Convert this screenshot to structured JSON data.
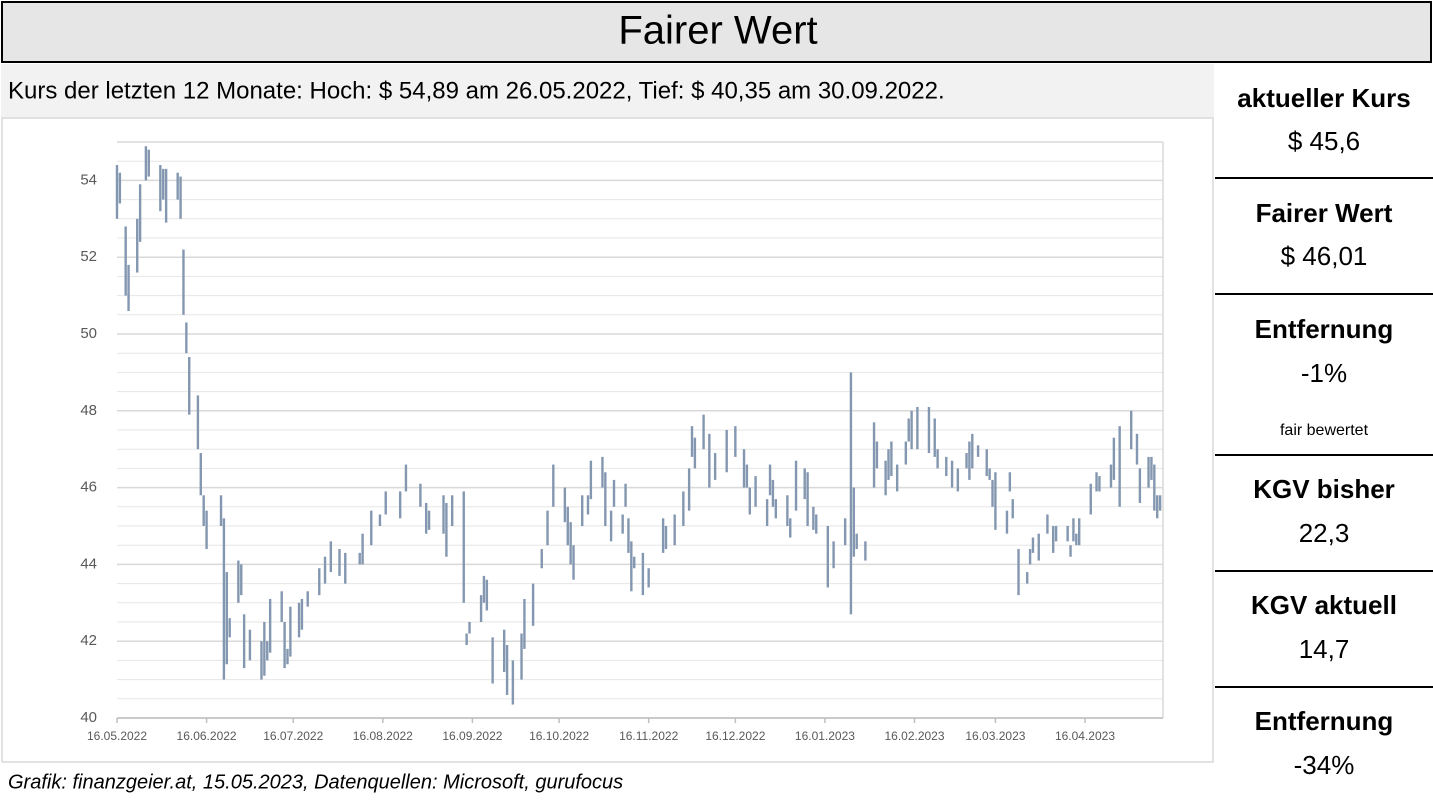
{
  "title": "Fairer Wert",
  "chart_data": {
    "type": "hilo",
    "subtitle": "Kurs der letzten 12 Monate: Hoch: $ 54,89 am 26.05.2022, Tief: $ 40,35 am 30.09.2022.",
    "color": "#8497b0",
    "grid": true,
    "x": [
      "2022-05-16",
      "2022-05-17",
      "2022-05-19",
      "2022-05-20",
      "2022-05-23",
      "2022-05-24",
      "2022-05-26",
      "2022-05-27",
      "2022-05-31",
      "2022-06-01",
      "2022-06-02",
      "2022-06-06",
      "2022-06-07",
      "2022-06-08",
      "2022-06-09",
      "2022-06-10",
      "2022-06-13",
      "2022-06-14",
      "2022-06-15",
      "2022-06-16",
      "2022-06-21",
      "2022-06-22",
      "2022-06-23",
      "2022-06-24",
      "2022-06-27",
      "2022-06-28",
      "2022-06-29",
      "2022-07-01",
      "2022-07-05",
      "2022-07-06",
      "2022-07-07",
      "2022-07-08",
      "2022-07-12",
      "2022-07-13",
      "2022-07-14",
      "2022-07-15",
      "2022-07-18",
      "2022-07-19",
      "2022-07-21",
      "2022-07-25",
      "2022-07-27",
      "2022-07-29",
      "2022-08-01",
      "2022-08-03",
      "2022-08-08",
      "2022-08-09",
      "2022-08-12",
      "2022-08-15",
      "2022-08-17",
      "2022-08-22",
      "2022-08-24",
      "2022-08-29",
      "2022-08-31",
      "2022-09-01",
      "2022-09-06",
      "2022-09-07",
      "2022-09-09",
      "2022-09-13",
      "2022-09-14",
      "2022-09-15",
      "2022-09-19",
      "2022-09-20",
      "2022-09-21",
      "2022-09-23",
      "2022-09-27",
      "2022-09-28",
      "2022-09-30",
      "2022-10-03",
      "2022-10-04",
      "2022-10-07",
      "2022-10-10",
      "2022-10-12",
      "2022-10-14",
      "2022-10-18",
      "2022-10-19",
      "2022-10-20",
      "2022-10-21",
      "2022-10-24",
      "2022-10-26",
      "2022-10-27",
      "2022-10-31",
      "2022-11-01",
      "2022-11-03",
      "2022-11-04",
      "2022-11-07",
      "2022-11-08",
      "2022-11-09",
      "2022-11-10",
      "2022-11-11",
      "2022-11-14",
      "2022-11-16",
      "2022-11-21",
      "2022-11-22",
      "2022-11-25",
      "2022-11-28",
      "2022-11-30",
      "2022-12-01",
      "2022-12-02",
      "2022-12-05",
      "2022-12-07",
      "2022-12-09",
      "2022-12-13",
      "2022-12-16",
      "2022-12-19",
      "2022-12-20",
      "2022-12-21",
      "2022-12-23",
      "2022-12-27",
      "2022-12-28",
      "2022-12-29",
      "2022-12-30",
      "2023-01-03",
      "2023-01-04",
      "2023-01-06",
      "2023-01-09",
      "2023-01-10",
      "2023-01-12",
      "2023-01-13",
      "2023-01-17",
      "2023-01-19",
      "2023-01-23",
      "2023-01-25",
      "2023-01-26",
      "2023-01-27",
      "2023-01-30",
      "2023-02-02",
      "2023-02-03",
      "2023-02-06",
      "2023-02-07",
      "2023-02-08",
      "2023-02-10",
      "2023-02-13",
      "2023-02-14",
      "2023-02-15",
      "2023-02-17",
      "2023-02-21",
      "2023-02-23",
      "2023-02-24",
      "2023-02-27",
      "2023-03-01",
      "2023-03-03",
      "2023-03-06",
      "2023-03-07",
      "2023-03-08",
      "2023-03-10",
      "2023-03-13",
      "2023-03-14",
      "2023-03-15",
      "2023-03-16",
      "2023-03-20",
      "2023-03-21",
      "2023-03-22",
      "2023-03-24",
      "2023-03-27",
      "2023-03-28",
      "2023-03-29",
      "2023-03-31",
      "2023-04-03",
      "2023-04-05",
      "2023-04-06",
      "2023-04-10",
      "2023-04-11",
      "2023-04-12",
      "2023-04-13",
      "2023-04-14",
      "2023-04-18",
      "2023-04-20",
      "2023-04-21",
      "2023-04-25",
      "2023-04-26",
      "2023-04-28",
      "2023-05-02",
      "2023-05-04",
      "2023-05-05",
      "2023-05-08",
      "2023-05-09",
      "2023-05-10",
      "2023-05-11",
      "2023-05-12"
    ],
    "low": [
      53.0,
      53.4,
      51.0,
      50.6,
      51.6,
      52.4,
      54.0,
      54.1,
      53.2,
      53.5,
      52.9,
      53.5,
      53.0,
      50.5,
      49.5,
      47.9,
      47.0,
      45.8,
      45.0,
      44.4,
      45.0,
      41.0,
      41.4,
      42.1,
      43.0,
      43.2,
      41.3,
      41.5,
      41.0,
      41.1,
      41.5,
      41.7,
      42.5,
      41.3,
      41.4,
      41.6,
      42.1,
      42.3,
      42.9,
      43.2,
      43.5,
      43.8,
      43.7,
      43.5,
      44.0,
      44.0,
      44.5,
      45.0,
      45.3,
      45.2,
      45.9,
      45.5,
      44.8,
      44.9,
      44.8,
      44.2,
      45.0,
      43.0,
      41.9,
      42.2,
      42.5,
      43.0,
      42.8,
      40.9,
      41.2,
      40.6,
      40.35,
      41.0,
      41.8,
      42.4,
      43.9,
      44.5,
      45.5,
      45.1,
      44.5,
      44.0,
      43.6,
      45.0,
      45.3,
      45.7,
      46.0,
      45.0,
      44.6,
      45.5,
      44.8,
      45.5,
      44.3,
      43.3,
      43.9,
      43.2,
      43.4,
      44.3,
      44.4,
      44.5,
      45.0,
      45.4,
      46.8,
      46.5,
      47.0,
      46.0,
      46.2,
      46.4,
      46.8,
      46.0,
      46.0,
      45.3,
      45.5,
      45.0,
      45.8,
      45.5,
      45.2,
      45.0,
      44.7,
      45.4,
      45.7,
      45.0,
      44.9,
      44.8,
      43.4,
      43.9,
      44.5,
      42.7,
      44.2,
      44.4,
      44.1,
      46.0,
      46.5,
      45.8,
      46.2,
      46.3,
      45.9,
      46.6,
      47.2,
      47.0,
      47.0,
      46.9,
      46.8,
      46.5,
      46.3,
      46.0,
      45.9,
      46.5,
      46.2,
      46.5,
      46.8,
      46.3,
      46.2,
      45.5,
      44.9,
      44.8,
      45.9,
      45.2,
      43.2,
      43.5,
      44.0,
      44.3,
      44.1,
      44.8,
      44.3,
      44.6,
      44.6,
      44.2,
      44.6,
      44.5,
      44.5,
      45.3,
      45.9,
      45.9,
      46.0,
      46.2,
      45.5,
      47.0,
      46.6,
      45.6,
      46.0,
      46.2,
      45.4,
      45.2,
      45.4
    ],
    "high": [
      54.4,
      54.2,
      52.8,
      51.8,
      53.0,
      53.9,
      54.89,
      54.8,
      54.4,
      54.3,
      54.3,
      54.2,
      54.1,
      52.2,
      50.3,
      49.4,
      48.4,
      46.9,
      45.8,
      45.4,
      45.8,
      45.2,
      43.8,
      42.6,
      44.1,
      44.0,
      42.7,
      42.3,
      42.0,
      42.5,
      42.0,
      43.1,
      43.3,
      42.5,
      41.8,
      42.9,
      43.0,
      43.1,
      43.3,
      43.9,
      44.2,
      44.6,
      44.4,
      44.3,
      44.3,
      44.8,
      45.4,
      45.3,
      45.9,
      45.9,
      46.6,
      46.1,
      45.6,
      45.4,
      45.8,
      45.6,
      45.8,
      45.9,
      42.2,
      42.5,
      43.2,
      43.7,
      43.6,
      42.1,
      42.3,
      41.9,
      41.5,
      42.2,
      43.1,
      43.5,
      44.4,
      45.4,
      46.6,
      46.0,
      45.5,
      45.1,
      44.5,
      45.8,
      45.8,
      46.7,
      46.8,
      46.4,
      45.4,
      46.2,
      45.3,
      46.1,
      45.2,
      44.6,
      44.2,
      44.3,
      43.9,
      45.2,
      45.0,
      45.3,
      45.9,
      46.5,
      47.6,
      47.3,
      47.9,
      47.4,
      46.9,
      47.5,
      47.6,
      47.0,
      46.6,
      46.0,
      46.3,
      45.7,
      46.6,
      46.2,
      45.7,
      45.8,
      45.2,
      46.7,
      46.5,
      46.4,
      45.5,
      45.3,
      45.0,
      44.6,
      45.2,
      49.0,
      46.0,
      44.8,
      44.6,
      47.7,
      47.2,
      46.7,
      47.0,
      47.2,
      46.6,
      47.2,
      47.8,
      48.0,
      48.1,
      48.1,
      47.8,
      47.0,
      46.8,
      46.7,
      46.5,
      46.9,
      47.2,
      47.4,
      47.1,
      47.0,
      46.5,
      46.2,
      46.4,
      45.4,
      46.4,
      45.7,
      44.4,
      43.8,
      44.4,
      44.7,
      44.8,
      45.3,
      45.0,
      45.0,
      45.0,
      44.5,
      45.2,
      44.8,
      45.2,
      46.1,
      46.4,
      46.3,
      46.6,
      47.3,
      47.6,
      48.0,
      47.4,
      46.5,
      46.8,
      46.8,
      46.6,
      45.8,
      45.8
    ],
    "xlim": [
      "2022-05-16",
      "2023-05-13"
    ],
    "xticks": [
      {
        "value": "2022-05-16",
        "label": "16.05.2022"
      },
      {
        "value": "2022-06-16",
        "label": "16.06.2022"
      },
      {
        "value": "2022-07-16",
        "label": "16.07.2022"
      },
      {
        "value": "2022-08-16",
        "label": "16.08.2022"
      },
      {
        "value": "2022-09-16",
        "label": "16.09.2022"
      },
      {
        "value": "2022-10-16",
        "label": "16.10.2022"
      },
      {
        "value": "2022-11-16",
        "label": "16.11.2022"
      },
      {
        "value": "2022-12-16",
        "label": "16.12.2022"
      },
      {
        "value": "2023-01-16",
        "label": "16.01.2023"
      },
      {
        "value": "2023-02-16",
        "label": "16.02.2023"
      },
      {
        "value": "2023-03-16",
        "label": "16.03.2023"
      },
      {
        "value": "2023-04-16",
        "label": "16.04.2023"
      }
    ],
    "ylim": [
      40,
      55
    ],
    "yticks": [
      40,
      42,
      44,
      46,
      48,
      50,
      52,
      54
    ],
    "minor_yticks": [
      40.5,
      41,
      41.5,
      42.5,
      43,
      43.5,
      44.5,
      45,
      45.5,
      46.5,
      47,
      47.5,
      48.5,
      49,
      49.5,
      50.5,
      51,
      51.5,
      52.5,
      53,
      53.5,
      54.5,
      55
    ]
  },
  "source": "Grafik: finanzgeier.at, 15.05.2023, Datenquellen: Microsoft, gurufocus",
  "panel": [
    {
      "label": "aktueller Kurs",
      "value": "$ 45,6"
    },
    {
      "label": "Fairer Wert",
      "value": "$ 46,01"
    },
    {
      "label": "Entfernung",
      "value": "-1%",
      "note": "fair bewertet"
    },
    {
      "label": "KGV bisher",
      "value": "22,3"
    },
    {
      "label": "KGV aktuell",
      "value": "14,7"
    },
    {
      "label": "Entfernung",
      "value": "-34%"
    }
  ]
}
